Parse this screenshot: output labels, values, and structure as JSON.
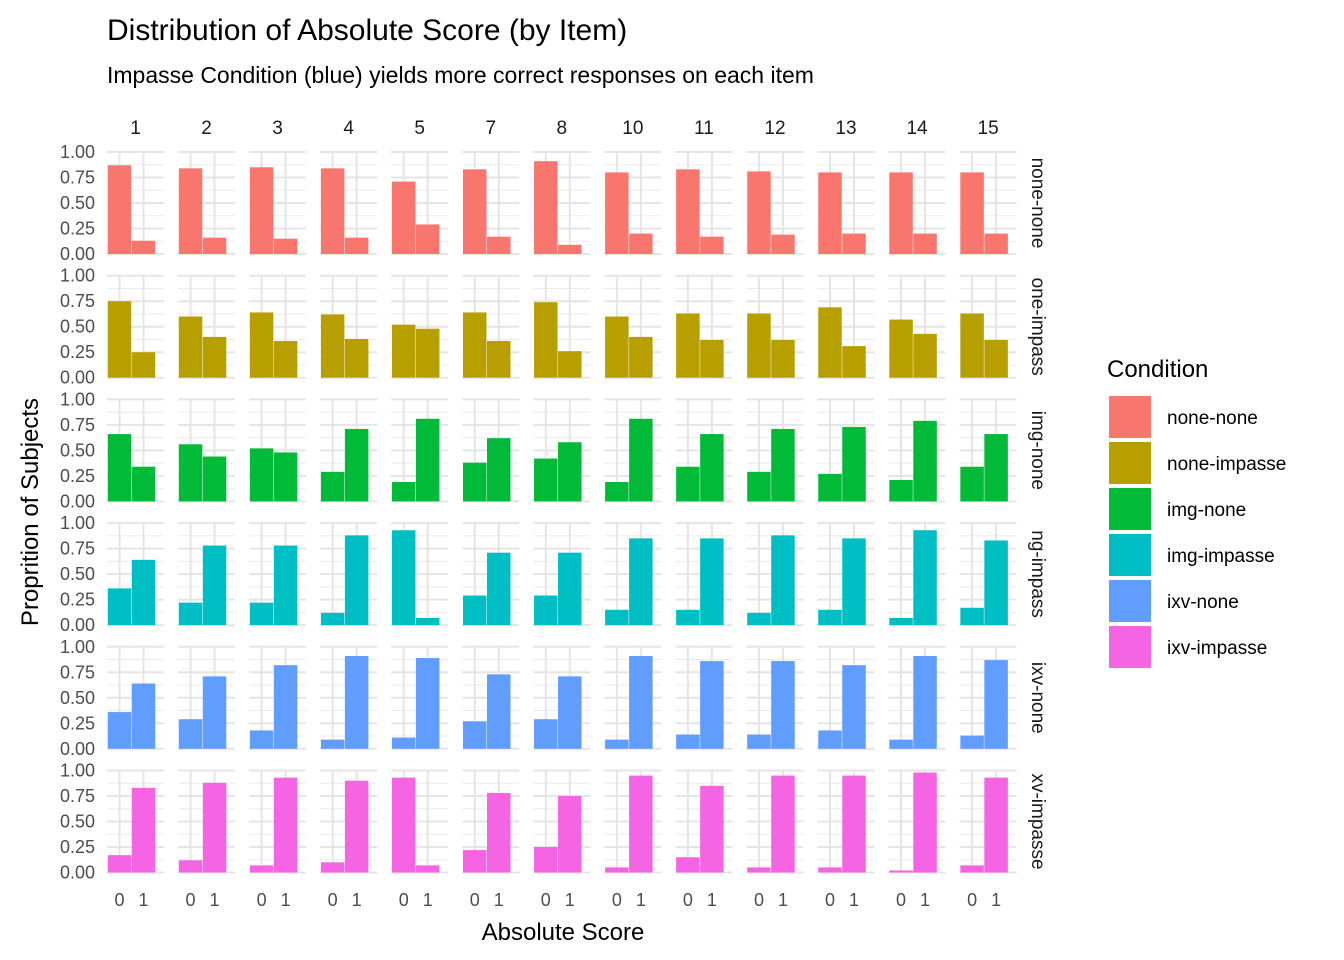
{
  "chart_data": {
    "type": "bar",
    "title": "Distribution of Absolute Score (by Item)",
    "subtitle": "Impasse Condition (blue) yields more correct responses on each item",
    "xlabel": "Absolute Score",
    "ylabel": "Proprition of Subjects",
    "x_categories": [
      "0",
      "1"
    ],
    "y_ticks": [
      "0.00",
      "0.25",
      "0.50",
      "0.75",
      "1.00"
    ],
    "ylim": [
      0,
      1
    ],
    "grid": true,
    "legend_position": "right",
    "legend_title": "Condition",
    "items": [
      "1",
      "2",
      "3",
      "4",
      "5",
      "7",
      "8",
      "10",
      "11",
      "12",
      "13",
      "14",
      "15"
    ],
    "conditions": [
      {
        "name": "none-none",
        "strip": "none-none",
        "color": "#F8766D",
        "values": [
          [
            0.87,
            0.13
          ],
          [
            0.84,
            0.16
          ],
          [
            0.85,
            0.15
          ],
          [
            0.84,
            0.16
          ],
          [
            0.71,
            0.29
          ],
          [
            0.83,
            0.17
          ],
          [
            0.91,
            0.09
          ],
          [
            0.8,
            0.2
          ],
          [
            0.83,
            0.17
          ],
          [
            0.81,
            0.19
          ],
          [
            0.8,
            0.2
          ],
          [
            0.8,
            0.2
          ],
          [
            0.8,
            0.2
          ]
        ]
      },
      {
        "name": "none-impasse",
        "strip": "one-impass",
        "color": "#B79F00",
        "values": [
          [
            0.75,
            0.25
          ],
          [
            0.6,
            0.4
          ],
          [
            0.64,
            0.36
          ],
          [
            0.62,
            0.38
          ],
          [
            0.52,
            0.48
          ],
          [
            0.64,
            0.36
          ],
          [
            0.74,
            0.26
          ],
          [
            0.6,
            0.4
          ],
          [
            0.63,
            0.37
          ],
          [
            0.63,
            0.37
          ],
          [
            0.69,
            0.31
          ],
          [
            0.57,
            0.43
          ],
          [
            0.63,
            0.37
          ]
        ]
      },
      {
        "name": "img-none",
        "strip": "img-none",
        "color": "#00BA38",
        "values": [
          [
            0.66,
            0.34
          ],
          [
            0.56,
            0.44
          ],
          [
            0.52,
            0.48
          ],
          [
            0.29,
            0.71
          ],
          [
            0.19,
            0.81
          ],
          [
            0.38,
            0.62
          ],
          [
            0.42,
            0.58
          ],
          [
            0.19,
            0.81
          ],
          [
            0.34,
            0.66
          ],
          [
            0.29,
            0.71
          ],
          [
            0.27,
            0.73
          ],
          [
            0.21,
            0.79
          ],
          [
            0.34,
            0.66
          ]
        ]
      },
      {
        "name": "img-impasse",
        "strip": "ng-impass",
        "color": "#00BFC4",
        "values": [
          [
            0.36,
            0.64
          ],
          [
            0.22,
            0.78
          ],
          [
            0.22,
            0.78
          ],
          [
            0.12,
            0.88
          ],
          [
            0.93,
            0.07
          ],
          [
            0.29,
            0.71
          ],
          [
            0.29,
            0.71
          ],
          [
            0.15,
            0.85
          ],
          [
            0.15,
            0.85
          ],
          [
            0.12,
            0.88
          ],
          [
            0.15,
            0.85
          ],
          [
            0.07,
            0.93
          ],
          [
            0.17,
            0.83
          ]
        ]
      },
      {
        "name": "ixv-none",
        "strip": "ixv-none",
        "color": "#619CFF",
        "values": [
          [
            0.36,
            0.64
          ],
          [
            0.29,
            0.71
          ],
          [
            0.18,
            0.82
          ],
          [
            0.09,
            0.91
          ],
          [
            0.11,
            0.89
          ],
          [
            0.27,
            0.73
          ],
          [
            0.29,
            0.71
          ],
          [
            0.09,
            0.91
          ],
          [
            0.14,
            0.86
          ],
          [
            0.14,
            0.86
          ],
          [
            0.18,
            0.82
          ],
          [
            0.09,
            0.91
          ],
          [
            0.13,
            0.87
          ]
        ]
      },
      {
        "name": "ixv-impasse",
        "strip": "xv-impasse",
        "color": "#F564E3",
        "values": [
          [
            0.17,
            0.83
          ],
          [
            0.12,
            0.88
          ],
          [
            0.07,
            0.93
          ],
          [
            0.1,
            0.9
          ],
          [
            0.93,
            0.07
          ],
          [
            0.22,
            0.78
          ],
          [
            0.25,
            0.75
          ],
          [
            0.05,
            0.95
          ],
          [
            0.15,
            0.85
          ],
          [
            0.05,
            0.95
          ],
          [
            0.05,
            0.95
          ],
          [
            0.02,
            0.98
          ],
          [
            0.07,
            0.93
          ]
        ]
      }
    ]
  }
}
